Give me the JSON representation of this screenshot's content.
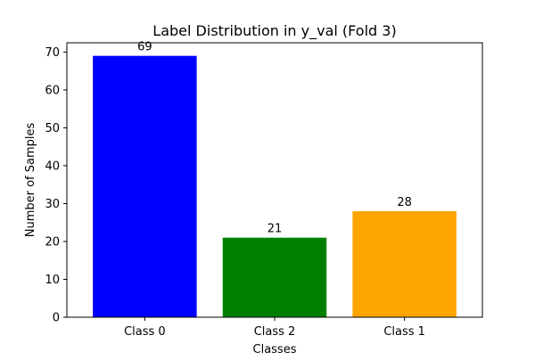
{
  "chart_data": {
    "type": "bar",
    "title": "Label Distribution in y_val (Fold 3)",
    "xlabel": "Classes",
    "ylabel": "Number of Samples",
    "categories": [
      "Class 0",
      "Class 2",
      "Class 1"
    ],
    "values": [
      69,
      21,
      28
    ],
    "colors": [
      "#0000ff",
      "#008000",
      "#ffa500"
    ],
    "ylim": [
      0,
      72.45
    ],
    "yticks": [
      0,
      10,
      20,
      30,
      40,
      50,
      60,
      70
    ],
    "grid": false,
    "legend": "none"
  }
}
